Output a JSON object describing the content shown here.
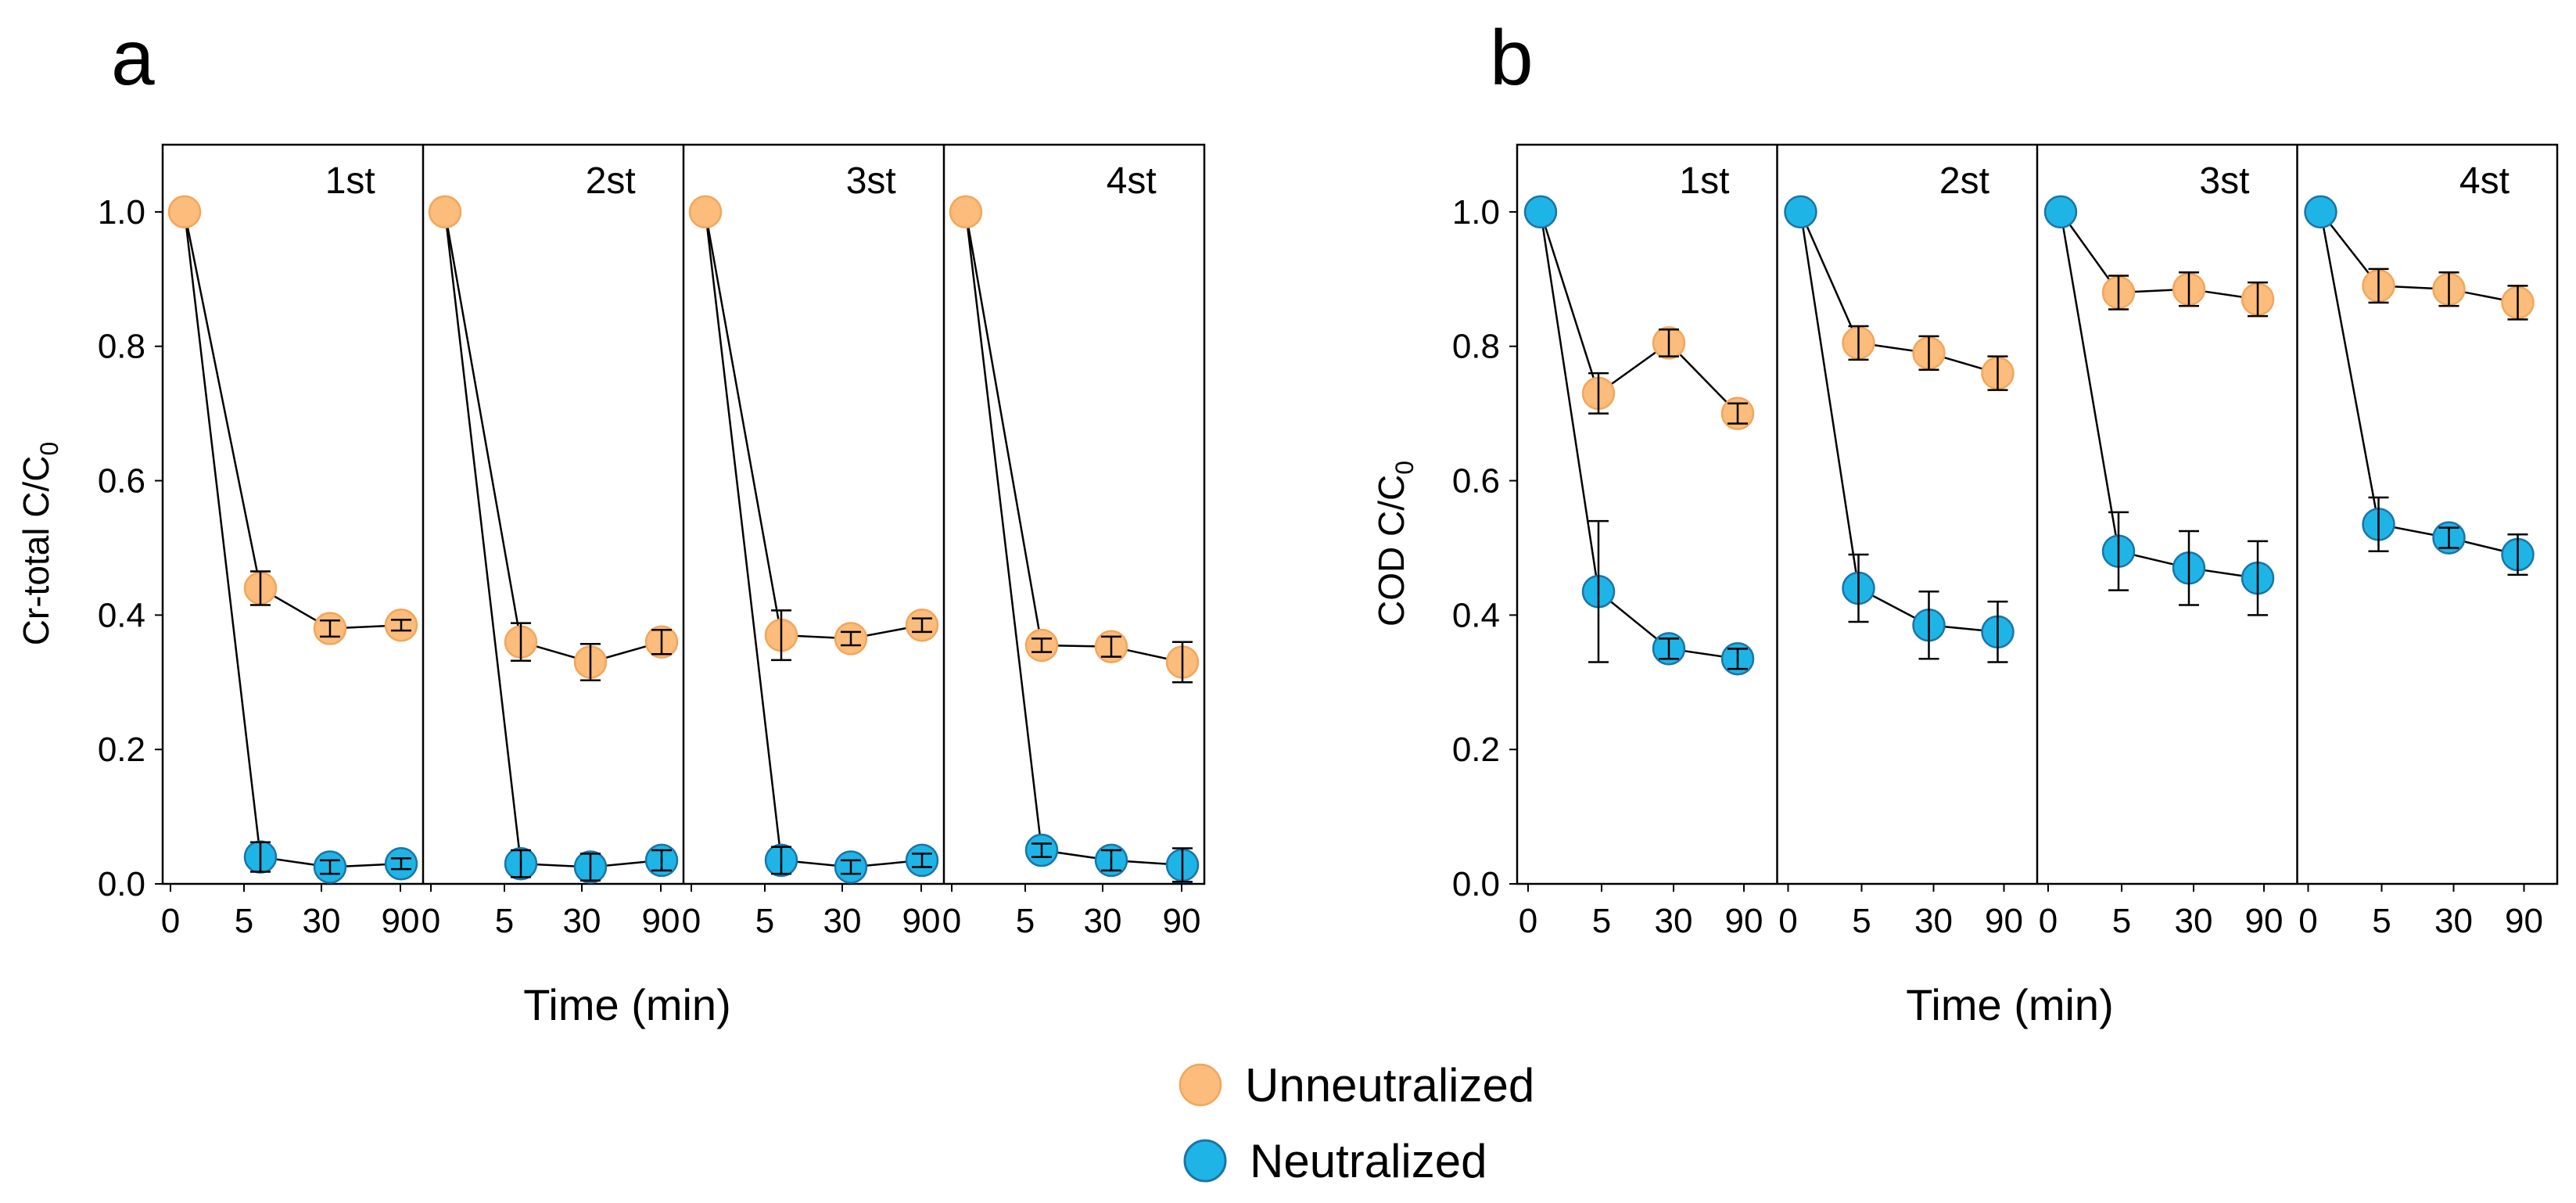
{
  "legend": {
    "unneutralized_label": "Unneutralized",
    "neutralized_label": "Neutralized"
  },
  "colors": {
    "unneutralized_fill": "#FBBC7C",
    "unneutralized_edge": "#F2A65A",
    "neutralized_fill": "#1FB4E6",
    "neutralized_edge": "#1A74A8",
    "line": "#000000"
  },
  "chart_data": [
    {
      "type": "scatter",
      "panel": "a",
      "ylabel_main": "Cr-total  C/C",
      "ylabel_sub": "0",
      "xlabel": "Time (min)",
      "ylim": [
        0,
        1.1
      ],
      "yticks": [
        "0.0",
        "0.2",
        "0.4",
        "0.6",
        "0.8",
        "1.0"
      ],
      "ytick_values": [
        0,
        0.2,
        0.4,
        0.6,
        0.8,
        1.0
      ],
      "xtick_labels": [
        "0",
        "5",
        "30",
        "90"
      ],
      "cycles": [
        {
          "label": "1st",
          "unneutralized": {
            "values": [
              1.0,
              0.44,
              0.38,
              0.385
            ],
            "errors": [
              0,
              0.025,
              0.012,
              0.008
            ]
          },
          "neutralized": {
            "values": [
              1.0,
              0.04,
              0.025,
              0.03
            ],
            "errors": [
              0,
              0.022,
              0.01,
              0.008
            ]
          }
        },
        {
          "label": "2st",
          "unneutralized": {
            "values": [
              1.0,
              0.36,
              0.33,
              0.36
            ],
            "errors": [
              0,
              0.028,
              0.027,
              0.018
            ]
          },
          "neutralized": {
            "values": [
              1.0,
              0.03,
              0.025,
              0.035
            ],
            "errors": [
              0,
              0.02,
              0.02,
              0.015
            ]
          }
        },
        {
          "label": "3st",
          "unneutralized": {
            "values": [
              1.0,
              0.37,
              0.365,
              0.385
            ],
            "errors": [
              0,
              0.037,
              0.01,
              0.01
            ]
          },
          "neutralized": {
            "values": [
              1.0,
              0.035,
              0.025,
              0.035
            ],
            "errors": [
              0,
              0.02,
              0.01,
              0.01
            ]
          }
        },
        {
          "label": "4st",
          "unneutralized": {
            "values": [
              1.0,
              0.355,
              0.353,
              0.33
            ],
            "errors": [
              0,
              0.01,
              0.015,
              0.03
            ]
          },
          "neutralized": {
            "values": [
              1.0,
              0.05,
              0.035,
              0.028
            ],
            "errors": [
              0,
              0.01,
              0.015,
              0.025
            ]
          }
        }
      ]
    },
    {
      "type": "scatter",
      "panel": "b",
      "ylabel_main": "COD C/C",
      "ylabel_sub": "0",
      "xlabel": "Time (min)",
      "ylim": [
        0,
        1.1
      ],
      "yticks": [
        "0.0",
        "0.2",
        "0.4",
        "0.6",
        "0.8",
        "1.0"
      ],
      "ytick_values": [
        0,
        0.2,
        0.4,
        0.6,
        0.8,
        1.0
      ],
      "xtick_labels": [
        "0",
        "5",
        "30",
        "90"
      ],
      "cycles": [
        {
          "label": "1st",
          "unneutralized": {
            "values": [
              1.0,
              0.73,
              0.805,
              0.7
            ],
            "errors": [
              0,
              0.03,
              0.02,
              0.015
            ]
          },
          "neutralized": {
            "values": [
              1.0,
              0.435,
              0.35,
              0.335
            ],
            "errors": [
              0,
              0.105,
              0.015,
              0.015
            ]
          }
        },
        {
          "label": "2st",
          "unneutralized": {
            "values": [
              1.0,
              0.805,
              0.79,
              0.76
            ],
            "errors": [
              0,
              0.025,
              0.025,
              0.025
            ]
          },
          "neutralized": {
            "values": [
              1.0,
              0.44,
              0.385,
              0.375
            ],
            "errors": [
              0,
              0.05,
              0.05,
              0.045
            ]
          }
        },
        {
          "label": "3st",
          "unneutralized": {
            "values": [
              1.0,
              0.88,
              0.885,
              0.87
            ],
            "errors": [
              0,
              0.025,
              0.025,
              0.025
            ]
          },
          "neutralized": {
            "values": [
              1.0,
              0.495,
              0.47,
              0.455
            ],
            "errors": [
              0,
              0.058,
              0.055,
              0.055
            ]
          }
        },
        {
          "label": "4st",
          "unneutralized": {
            "values": [
              1.0,
              0.89,
              0.885,
              0.865
            ],
            "errors": [
              0,
              0.025,
              0.025,
              0.025
            ]
          },
          "neutralized": {
            "values": [
              1.0,
              0.535,
              0.515,
              0.49
            ],
            "errors": [
              0,
              0.04,
              0.015,
              0.03
            ]
          }
        }
      ]
    }
  ]
}
